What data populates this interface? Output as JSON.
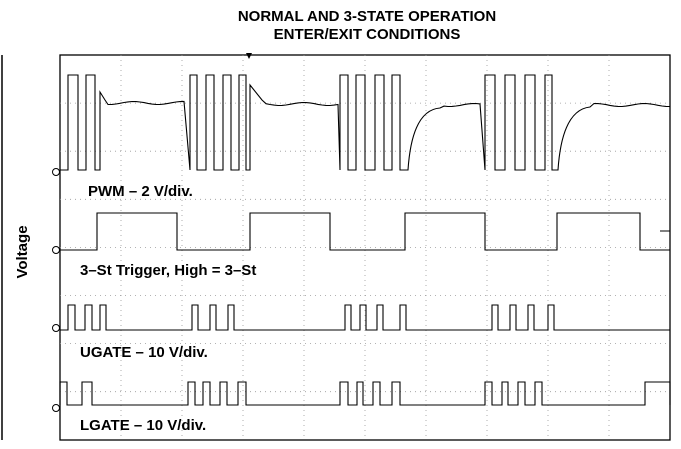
{
  "title": [
    "NORMAL AND 3-STATE OPERATION",
    "ENTER/EXIT CONDITIONS"
  ],
  "y_label": "Voltage",
  "channels": [
    "PWM – 2 V/div.",
    "3–St Trigger, High = 3–St",
    "UGATE – 10 V/div.",
    "LGATE – 10 V/div."
  ]
}
